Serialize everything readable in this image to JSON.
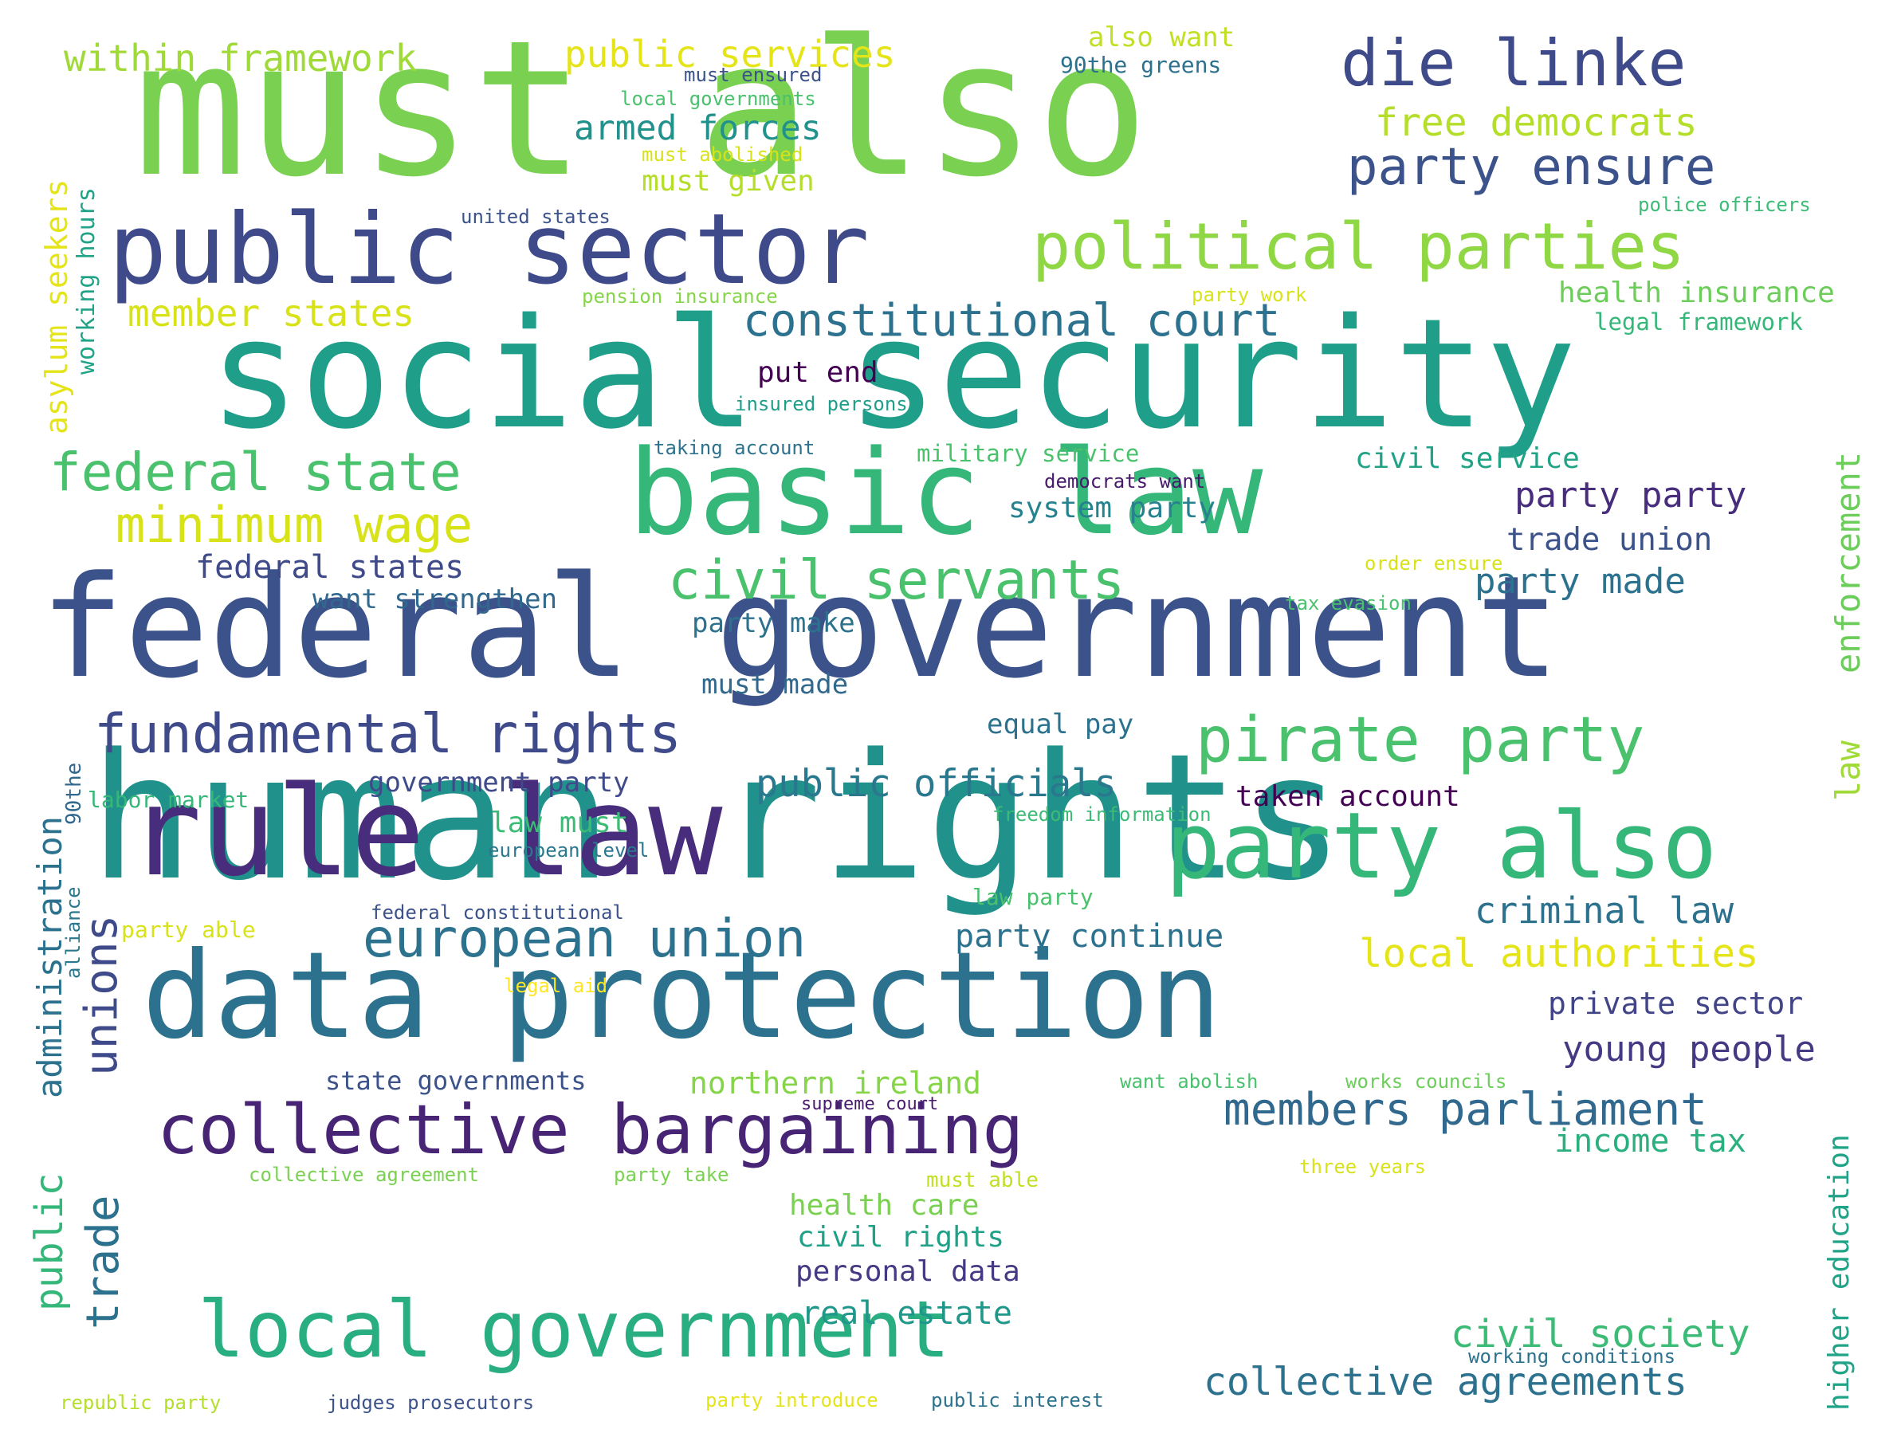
{
  "colors": {
    "background": "#ffffff",
    "palette": "viridis"
  },
  "words": [
    {
      "text": "human rights",
      "color": "#21918c"
    },
    {
      "text": "must also",
      "color": "#7ad151"
    },
    {
      "text": "federal government",
      "color": "#3b528b"
    },
    {
      "text": "social security",
      "color": "#1f9e89"
    },
    {
      "text": "data protection",
      "color": "#2c728e"
    },
    {
      "text": "rule law",
      "color": "#472d7b"
    },
    {
      "text": "basic law",
      "color": "#35b779"
    },
    {
      "text": "public sector",
      "color": "#3e4a89"
    },
    {
      "text": "party also",
      "color": "#35b779"
    },
    {
      "text": "local government",
      "color": "#28ae80"
    },
    {
      "text": "collective bargaining",
      "color": "#482475"
    },
    {
      "text": "political parties",
      "color": "#8fd744"
    },
    {
      "text": "die linke",
      "color": "#3e4a89"
    },
    {
      "text": "pirate party",
      "color": "#4ac16d"
    },
    {
      "text": "fundamental rights",
      "color": "#3e4a89"
    },
    {
      "text": "civil servants",
      "color": "#4ac16d"
    },
    {
      "text": "european union",
      "color": "#2c728e"
    },
    {
      "text": "federal state",
      "color": "#4ac16d"
    },
    {
      "text": "minimum wage",
      "color": "#d8e219"
    },
    {
      "text": "party ensure",
      "color": "#3b528b"
    },
    {
      "text": "constitutional court",
      "color": "#2c728e"
    },
    {
      "text": "members parliament",
      "color": "#31688e"
    },
    {
      "text": "collective agreements",
      "color": "#2c728e"
    },
    {
      "text": "local authorities",
      "color": "#e5e419"
    },
    {
      "text": "public officials",
      "color": "#2a788e"
    },
    {
      "text": "free democrats",
      "color": "#b5de2b"
    },
    {
      "text": "within framework",
      "color": "#a0da39"
    },
    {
      "text": "public services",
      "color": "#e5e419"
    },
    {
      "text": "civil society",
      "color": "#3bbb75"
    },
    {
      "text": "criminal law",
      "color": "#2c728e"
    },
    {
      "text": "member states",
      "color": "#d8e219"
    },
    {
      "text": "armed forces",
      "color": "#21918c"
    },
    {
      "text": "young people",
      "color": "#443983"
    },
    {
      "text": "party party",
      "color": "#472d7b"
    },
    {
      "text": "party continue",
      "color": "#2c728e"
    },
    {
      "text": "party made",
      "color": "#2c728e"
    },
    {
      "text": "private sector",
      "color": "#414487"
    },
    {
      "text": "income tax",
      "color": "#2ab07f"
    },
    {
      "text": "federal states",
      "color": "#3e4a89"
    },
    {
      "text": "trade union",
      "color": "#3b528b"
    },
    {
      "text": "real estate",
      "color": "#1f988b"
    },
    {
      "text": "health care",
      "color": "#7ad151"
    },
    {
      "text": "civil rights",
      "color": "#1fa187"
    },
    {
      "text": "personal data",
      "color": "#443983"
    },
    {
      "text": "northern ireland",
      "color": "#86d549"
    },
    {
      "text": "want strengthen",
      "color": "#31688e"
    },
    {
      "text": "system party",
      "color": "#26828e"
    },
    {
      "text": "civil service",
      "color": "#20a386"
    },
    {
      "text": "taken account",
      "color": "#440154"
    },
    {
      "text": "government party",
      "color": "#3e4a89"
    },
    {
      "text": "law must",
      "color": "#3bbb75"
    },
    {
      "text": "put end",
      "color": "#440154"
    },
    {
      "text": "must given",
      "color": "#b5de2b"
    },
    {
      "text": "party make",
      "color": "#2c728e"
    },
    {
      "text": "must made",
      "color": "#31688e"
    },
    {
      "text": "equal pay",
      "color": "#2c728e"
    },
    {
      "text": "state governments",
      "color": "#3b528b"
    },
    {
      "text": "also want",
      "color": "#c2df23"
    },
    {
      "text": "90the greens",
      "color": "#2c728e"
    },
    {
      "text": "must ensured",
      "color": "#3b528b"
    },
    {
      "text": "local governments",
      "color": "#4ac16d"
    },
    {
      "text": "must abolished",
      "color": "#d8e219"
    },
    {
      "text": "united states",
      "color": "#3b528b"
    },
    {
      "text": "police officers",
      "color": "#3bbb75"
    },
    {
      "text": "health insurance",
      "color": "#6ccd5a"
    },
    {
      "text": "legal framework",
      "color": "#35b779"
    },
    {
      "text": "pension insurance",
      "color": "#86d549"
    },
    {
      "text": "party work",
      "color": "#d8e219"
    },
    {
      "text": "insured persons",
      "color": "#1f9e89"
    },
    {
      "text": "taking account",
      "color": "#2c728e"
    },
    {
      "text": "military service",
      "color": "#4ac16d"
    },
    {
      "text": "democrats want",
      "color": "#481a6c"
    },
    {
      "text": "order ensure",
      "color": "#d8e219"
    },
    {
      "text": "tax evasion",
      "color": "#4ac16d"
    },
    {
      "text": "labor market",
      "color": "#35b779"
    },
    {
      "text": "freedom information",
      "color": "#3bbb75"
    },
    {
      "text": "european level",
      "color": "#2a788e"
    },
    {
      "text": "law party",
      "color": "#4ac16d"
    },
    {
      "text": "federal constitutional",
      "color": "#3b528b"
    },
    {
      "text": "party able",
      "color": "#d8e219"
    },
    {
      "text": "legal aid",
      "color": "#fde725"
    },
    {
      "text": "want abolish",
      "color": "#4ac16d"
    },
    {
      "text": "works councils",
      "color": "#6ccd5a"
    },
    {
      "text": "supreme court",
      "color": "#481a6c"
    },
    {
      "text": "collective agreement",
      "color": "#7ad151"
    },
    {
      "text": "party take",
      "color": "#7ad151"
    },
    {
      "text": "must able",
      "color": "#c2df23"
    },
    {
      "text": "three years",
      "color": "#d8e219"
    },
    {
      "text": "working conditions",
      "color": "#2c728e"
    },
    {
      "text": "republic party",
      "color": "#b5de2b"
    },
    {
      "text": "judges prosecutors",
      "color": "#3b528b"
    },
    {
      "text": "party introduce",
      "color": "#e5e419"
    },
    {
      "text": "public interest",
      "color": "#2c728e"
    },
    {
      "text": "asylum seekers",
      "color": "#e5e419"
    },
    {
      "text": "working hours",
      "color": "#20a386"
    },
    {
      "text": "administration",
      "color": "#2c728e"
    },
    {
      "text": "90the",
      "color": "#31688e"
    },
    {
      "text": "alliance",
      "color": "#2a788e"
    },
    {
      "text": "unions",
      "color": "#3e4a89"
    },
    {
      "text": "trade",
      "color": "#2c728e"
    },
    {
      "text": "public",
      "color": "#35b779"
    },
    {
      "text": "enforcement",
      "color": "#6ccd5a"
    },
    {
      "text": "law",
      "color": "#a0da39"
    },
    {
      "text": "higher education",
      "color": "#20a386"
    }
  ]
}
